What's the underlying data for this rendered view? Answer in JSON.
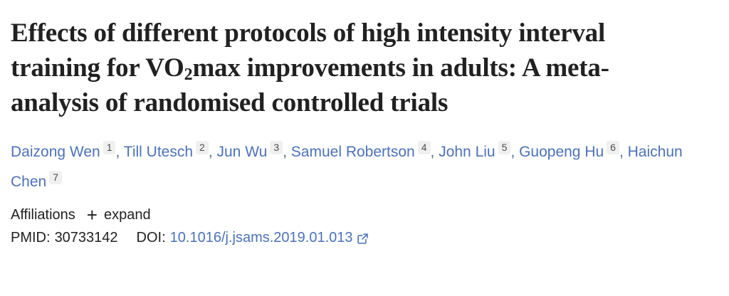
{
  "title": {
    "pre": "Effects of different protocols of high intensity interval training for VO",
    "sub": "2",
    "post": "max improvements in adults: A meta-analysis of randomised controlled trials"
  },
  "authors": [
    {
      "name": "Daizong Wen",
      "sup": "1"
    },
    {
      "name": "Till Utesch",
      "sup": "2"
    },
    {
      "name": "Jun Wu",
      "sup": "3"
    },
    {
      "name": "Samuel Robertson",
      "sup": "4"
    },
    {
      "name": "John Liu",
      "sup": "5"
    },
    {
      "name": "Guopeng Hu",
      "sup": "6"
    },
    {
      "name": "Haichun Chen",
      "sup": "7"
    }
  ],
  "authors_separator": ", ",
  "affiliations": {
    "label": "Affiliations",
    "plus_icon": "+",
    "expand_label": "expand"
  },
  "identifiers": {
    "pmid_label": "PMID:",
    "pmid_value": "30733142",
    "doi_label": "DOI:",
    "doi_value": "10.1016/j.jsams.2019.01.013",
    "external_link_icon": "external-link"
  },
  "colors": {
    "link_blue": "#4b72b8",
    "title_text": "#212121",
    "body_text": "#212121",
    "badge_bg": "#f0f0f0",
    "badge_text": "#4d4d4d",
    "page_bg": "#ffffff"
  }
}
